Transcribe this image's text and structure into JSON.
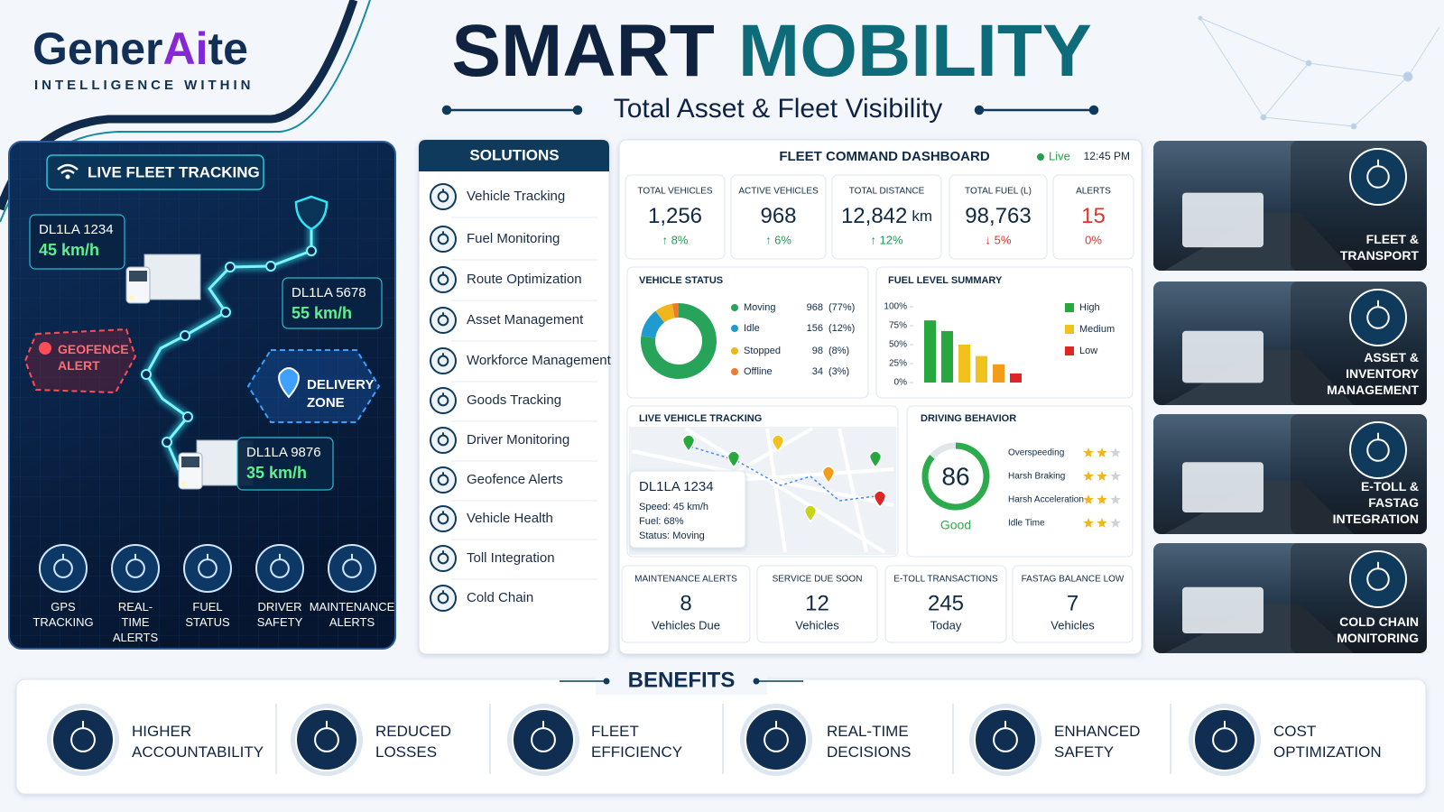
{
  "header": {
    "logo": {
      "part1": "Gener",
      "part2": "Ai",
      "part3": "te",
      "tagline": "INTELLIGENCE WITHIN"
    },
    "title_part1": "SMART",
    "title_part2": "MOBILITY",
    "subtitle": "Total Asset & Fleet Visibility"
  },
  "live_tracking": {
    "badge": "LIVE FLEET TRACKING",
    "vehicles": [
      {
        "id": "DL1LA 1234",
        "speed": "45 km/h"
      },
      {
        "id": "DL1LA 5678",
        "speed": "55 km/h"
      },
      {
        "id": "DL1LA 9876",
        "speed": "35 km/h"
      }
    ],
    "geofence": "GEOFENCE ALERT",
    "delivery_zone": "DELIVERY ZONE",
    "features": [
      "GPS TRACKING",
      "REAL-TIME ALERTS",
      "FUEL STATUS",
      "DRIVER SAFETY",
      "MAINTENANCE ALERTS"
    ]
  },
  "solutions": {
    "title": "SOLUTIONS",
    "items": [
      "Vehicle Tracking",
      "Fuel Monitoring",
      "Route Optimization",
      "Asset Management",
      "Workforce Management",
      "Goods Tracking",
      "Driver Monitoring",
      "Geofence Alerts",
      "Vehicle Health",
      "Toll Integration",
      "Cold Chain"
    ]
  },
  "dashboard": {
    "title": "FLEET COMMAND DASHBOARD",
    "status": "Live",
    "time": "12:45 PM",
    "kpis": [
      {
        "label": "TOTAL VEHICLES",
        "value": "1,256",
        "change": "↑ 8%",
        "trend": "up"
      },
      {
        "label": "ACTIVE VEHICLES",
        "value": "968",
        "change": "↑ 6%",
        "trend": "up"
      },
      {
        "label": "TOTAL DISTANCE",
        "value": "12,842",
        "unit": "km",
        "change": "↑ 12%",
        "trend": "up"
      },
      {
        "label": "TOTAL FUEL (L)",
        "value": "98,763",
        "change": "↓ 5%",
        "trend": "down"
      },
      {
        "label": "ALERTS",
        "value": "15",
        "change": "0%",
        "trend": "alert"
      }
    ],
    "vehicle_status": {
      "title": "VEHICLE STATUS",
      "type": "donut",
      "series": [
        {
          "name": "Moving",
          "value": 968,
          "share": "(77%)",
          "color": "#27a35a"
        },
        {
          "name": "Idle",
          "value": 156,
          "share": "(12%)",
          "color": "#1f9bd1"
        },
        {
          "name": "Stopped",
          "value": 98,
          "share": "(8%)",
          "color": "#f1b51e"
        },
        {
          "name": "Offline",
          "value": 34,
          "share": "(3%)",
          "color": "#ee7b2d"
        }
      ]
    },
    "fuel_level": {
      "title": "FUEL LEVEL SUMMARY",
      "type": "bar",
      "values": [
        82,
        68,
        50,
        35,
        24,
        12
      ],
      "colors": [
        "#27a83f",
        "#27a83f",
        "#f1c21b",
        "#f1c21b",
        "#f39c1a",
        "#e02525"
      ],
      "ylim": [
        0,
        100
      ],
      "yticks": [
        {
          "value": 0,
          "label": "0%"
        },
        {
          "value": 25,
          "label": "25%"
        },
        {
          "value": 50,
          "label": "50%"
        },
        {
          "value": 75,
          "label": "75%"
        },
        {
          "value": 100,
          "label": "100%"
        }
      ],
      "legend": [
        {
          "name": "High",
          "color": "#27a83f"
        },
        {
          "name": "Medium",
          "color": "#f1c21b"
        },
        {
          "name": "Low",
          "color": "#e02525"
        }
      ]
    },
    "map": {
      "title": "LIVE VEHICLE TRACKING",
      "card": {
        "id": "DL1LA 1234",
        "lines": [
          "Speed: 45 km/h",
          "Fuel: 68%",
          "Status: Moving"
        ]
      }
    },
    "driving": {
      "title": "DRIVING BEHAVIOR",
      "score": 86,
      "score_range": [
        0,
        100
      ],
      "rating": "Good",
      "stars_max": 3,
      "behaviors": [
        {
          "name": "Overspeeding",
          "stars": 2
        },
        {
          "name": "Harsh Braking",
          "stars": 2
        },
        {
          "name": "Harsh Acceleration",
          "stars": 2
        },
        {
          "name": "Idle Time",
          "stars": 2
        }
      ]
    },
    "summary": [
      {
        "label": "MAINTENANCE ALERTS",
        "value": 8,
        "unit": "Vehicles Due"
      },
      {
        "label": "SERVICE DUE SOON",
        "value": 12,
        "unit": "Vehicles"
      },
      {
        "label": "E-TOLL TRANSACTIONS",
        "value": 245,
        "unit": "Today"
      },
      {
        "label": "FASTAG BALANCE LOW",
        "value": 7,
        "unit": "Vehicles"
      }
    ]
  },
  "capabilities": [
    "FLEET & TRANSPORT",
    "ASSET & INVENTORY MANAGEMENT",
    "E-TOLL & FASTAG INTEGRATION",
    "COLD CHAIN MONITORING"
  ],
  "benefits": {
    "title": "BENEFITS",
    "items": [
      "HIGHER ACCOUNTABILITY",
      "REDUCED LOSSES",
      "FLEET EFFICIENCY",
      "REAL-TIME DECISIONS",
      "ENHANCED SAFETY",
      "COST OPTIMIZATION"
    ]
  }
}
